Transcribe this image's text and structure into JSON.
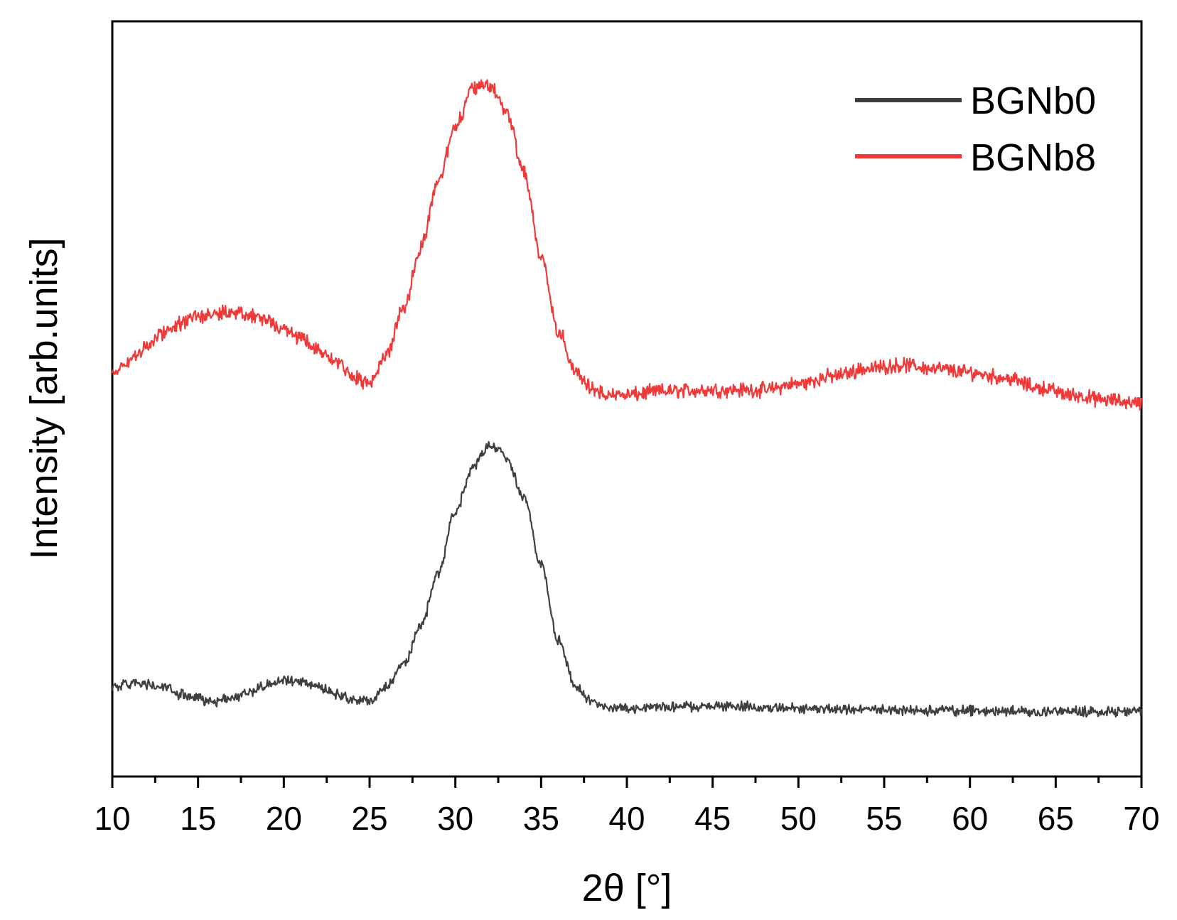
{
  "chart_data": {
    "type": "line",
    "xlabel": "2θ [°]",
    "ylabel": "Intensity [arb.units]",
    "xlim": [
      10,
      70
    ],
    "ylim": [
      0,
      1
    ],
    "y_ticks_shown": false,
    "grid": false,
    "legend_position": "top-right",
    "x_ticks_major": [
      10,
      15,
      20,
      25,
      30,
      35,
      40,
      45,
      50,
      55,
      60,
      65,
      70
    ],
    "x_tick_labels": [
      "10",
      "15",
      "20",
      "25",
      "30",
      "35",
      "40",
      "45",
      "50",
      "55",
      "60",
      "65",
      "70"
    ],
    "series": [
      {
        "name": "BGNb0",
        "color": "#3f3f3f",
        "noise": 0.008,
        "x": [
          10,
          11.5,
          13,
          14,
          15,
          16,
          17,
          18,
          19,
          20,
          21,
          22,
          23,
          24,
          25,
          26,
          27,
          28,
          29,
          30,
          31,
          32,
          32.5,
          33,
          34,
          35,
          36,
          37,
          38,
          39,
          40,
          42,
          45,
          50,
          55,
          60,
          65,
          70
        ],
        "y": [
          0.12,
          0.123,
          0.118,
          0.108,
          0.102,
          0.1,
          0.104,
          0.112,
          0.122,
          0.128,
          0.126,
          0.118,
          0.11,
          0.102,
          0.1,
          0.12,
          0.15,
          0.2,
          0.27,
          0.35,
          0.41,
          0.438,
          0.435,
          0.42,
          0.37,
          0.28,
          0.18,
          0.12,
          0.098,
          0.092,
          0.09,
          0.092,
          0.093,
          0.09,
          0.088,
          0.087,
          0.086,
          0.086
        ]
      },
      {
        "name": "BGNb8",
        "color": "#f03a3a",
        "noise": 0.012,
        "x": [
          10,
          11,
          12,
          13,
          14,
          15,
          16,
          17,
          18,
          19,
          20,
          21,
          22,
          23,
          24,
          25,
          26,
          27,
          28,
          29,
          30,
          31,
          32,
          33,
          34,
          35,
          36,
          37,
          38,
          39,
          40,
          42,
          45,
          48,
          50,
          52,
          54,
          56,
          58,
          60,
          62,
          64,
          66,
          68,
          70
        ],
        "y": [
          0.535,
          0.55,
          0.57,
          0.588,
          0.6,
          0.61,
          0.615,
          0.615,
          0.612,
          0.605,
          0.595,
          0.58,
          0.565,
          0.55,
          0.53,
          0.52,
          0.56,
          0.62,
          0.7,
          0.79,
          0.86,
          0.915,
          0.915,
          0.88,
          0.8,
          0.69,
          0.59,
          0.535,
          0.512,
          0.505,
          0.505,
          0.51,
          0.512,
          0.512,
          0.52,
          0.53,
          0.54,
          0.545,
          0.54,
          0.535,
          0.528,
          0.515,
          0.505,
          0.498,
          0.495
        ]
      }
    ]
  }
}
